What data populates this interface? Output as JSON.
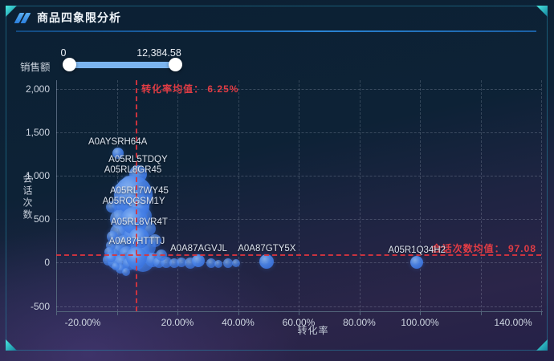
{
  "header": {
    "title": "商品四象限分析"
  },
  "filter": {
    "label": "销售额",
    "min": "0",
    "max": "12,384.58"
  },
  "colors": {
    "accent_red": "#e23c44",
    "bubble_blue": "#3b76e0",
    "slider_track": "#7cb5ef",
    "frame_cyan": "#2bb3c0",
    "underline_blue": "#1c62a8"
  },
  "chart_data": {
    "type": "scatter",
    "title": "商品四象限分析",
    "xlabel": "转化率",
    "ylabel": "会话次数",
    "xlim": [
      -20,
      140
    ],
    "ylim": [
      -560,
      2100
    ],
    "grid": true,
    "x_tick_labels": [
      {
        "v": -20,
        "label": "-20.00%"
      },
      {
        "v": 20,
        "label": "20.00%"
      },
      {
        "v": 40,
        "label": "40.00%"
      },
      {
        "v": 60,
        "label": "60.00%"
      },
      {
        "v": 80,
        "label": "80.00%"
      },
      {
        "v": 100,
        "label": "100.00%"
      },
      {
        "v": 140,
        "label": "140.00%"
      }
    ],
    "y_tick_labels": [
      {
        "v": 2000,
        "label": "2,000"
      },
      {
        "v": 1500,
        "label": "1,500"
      },
      {
        "v": 1000,
        "label": "1,000"
      },
      {
        "v": 500,
        "label": "500"
      },
      {
        "v": 0,
        "label": "0"
      },
      {
        "v": -500,
        "label": "-500"
      }
    ],
    "x_gridlines": [
      0,
      20,
      40,
      60,
      80,
      100,
      120,
      140
    ],
    "y_gridlines": [
      2000,
      1500,
      1000,
      500,
      0,
      -500
    ],
    "mean_x": {
      "value": 6.25,
      "label": "转化率均值： 6.25%"
    },
    "mean_y": {
      "value": 97.08,
      "label": "会话次数均值： 97.08"
    },
    "labeled_points": [
      {
        "name": "A0AYSRH64A",
        "x": 0.3,
        "y": 1260,
        "r": 7
      },
      {
        "name": "A05RL5TDQY",
        "x": 7.0,
        "y": 1020,
        "r": 11
      },
      {
        "name": "A05RL8GR45",
        "x": 5.3,
        "y": 775,
        "r": 24
      },
      {
        "name": "A05RL7WY45",
        "x": 7.4,
        "y": 645,
        "r": 13
      },
      {
        "name": "A05RQGSM1Y",
        "x": 5.6,
        "y": 480,
        "r": 17
      },
      {
        "name": "A05RL8VR4T",
        "x": 7.4,
        "y": 280,
        "r": 13
      },
      {
        "name": "A0A87HTTTJ",
        "x": 6.6,
        "y": 60,
        "r": 13
      },
      {
        "name": "A0A87AGVJL",
        "x": 27.0,
        "y": 20,
        "r": 8
      },
      {
        "name": "A0A87GTY5X",
        "x": 49.5,
        "y": 10,
        "r": 9
      },
      {
        "name": "A05R1Q34H2",
        "x": 99.0,
        "y": 0,
        "r": 8
      }
    ],
    "points": [
      [
        4.0,
        905,
        10
      ],
      [
        1.5,
        835,
        9
      ],
      [
        6.3,
        700,
        12
      ],
      [
        2.8,
        580,
        14
      ],
      [
        0.8,
        500,
        12
      ],
      [
        4.6,
        430,
        16
      ],
      [
        1.0,
        345,
        12
      ],
      [
        5.8,
        300,
        13
      ],
      [
        2.2,
        215,
        11
      ],
      [
        9.8,
        175,
        12
      ],
      [
        0.2,
        140,
        9
      ],
      [
        3.4,
        95,
        10
      ],
      [
        8.6,
        25,
        14
      ],
      [
        11.8,
        35,
        9
      ],
      [
        -1.2,
        90,
        8
      ],
      [
        -2.8,
        30,
        7
      ],
      [
        -0.6,
        10,
        9
      ],
      [
        1.8,
        0,
        10
      ],
      [
        4.2,
        -15,
        8
      ],
      [
        6.6,
        -5,
        9
      ],
      [
        13.9,
        5,
        7
      ],
      [
        16.4,
        0,
        7
      ],
      [
        18.9,
        -5,
        6
      ],
      [
        21.4,
        5,
        6
      ],
      [
        24.2,
        -5,
        7
      ],
      [
        31.0,
        -5,
        6
      ],
      [
        33.6,
        -15,
        5
      ],
      [
        36.8,
        -5,
        6
      ],
      [
        39.4,
        -10,
        5
      ],
      [
        1.2,
        -70,
        6
      ],
      [
        3.0,
        -110,
        5
      ],
      [
        -0.3,
        -45,
        5
      ],
      [
        0.5,
        680,
        8
      ],
      [
        9.0,
        540,
        10
      ],
      [
        10.4,
        390,
        9
      ],
      [
        -1.8,
        640,
        7
      ],
      [
        12.5,
        250,
        8
      ],
      [
        7.5,
        130,
        12
      ],
      [
        14.8,
        90,
        7
      ],
      [
        -1.5,
        300,
        7
      ],
      [
        -2.0,
        200,
        6
      ],
      [
        -2.5,
        120,
        6
      ],
      [
        -2.0,
        55,
        6
      ]
    ]
  }
}
